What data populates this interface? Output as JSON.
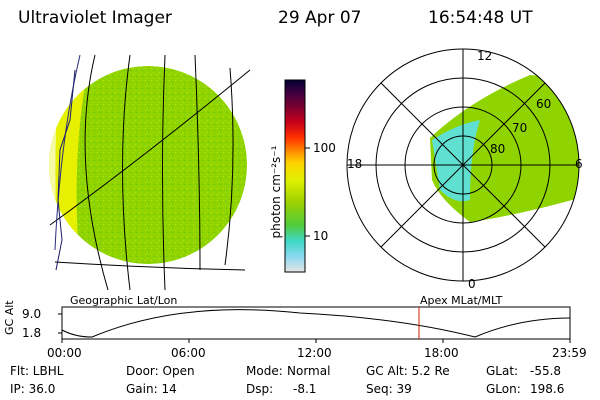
{
  "header": {
    "instrument": "Ultraviolet Imager",
    "date": "29 Apr 07",
    "time": "16:54:48 UT"
  },
  "colorbar": {
    "label": "photon cm⁻²s⁻¹",
    "ticks": [
      "100",
      "10"
    ]
  },
  "left_panel": {
    "caption": "Geographic Lat/Lon"
  },
  "right_panel": {
    "caption": "Apex MLat/MLT",
    "mlt_labels": {
      "top": "12",
      "left": "18",
      "right": "6",
      "bottom": "0"
    },
    "lat_labels": [
      "60",
      "70",
      "80"
    ]
  },
  "orbit_plot": {
    "ylabel": "GC Alt",
    "y_ticks": [
      "9.0",
      "1.8"
    ],
    "x_ticks": [
      "00:00",
      "06:00",
      "12:00",
      "18:00",
      "23:59"
    ],
    "current_time_hours": 16.91,
    "colors": {
      "curve": "#000000",
      "marker": "#cc2200"
    }
  },
  "status": {
    "flt": "Flt: LBHL",
    "door": "Door: Open",
    "mode_label": "Mode:",
    "mode_value": "Normal",
    "gc_alt": "GC Alt: 5.2 Re",
    "glat_label": "GLat:",
    "glat_value": "-55.8",
    "ip": "IP: 36.0",
    "gain": "Gain: 14",
    "dsp_label": "Dsp:",
    "dsp_value": "-8.1",
    "seq": "Seq: 39",
    "glon_label": "GLon:",
    "glon_value": "198.6"
  },
  "colors": {
    "image_green": "#8fd400",
    "image_yellow": "#e6f000",
    "image_cyan": "#5fe0d0",
    "colorbar_stops": [
      "#000033",
      "#3a0040",
      "#7a0030",
      "#c8001a",
      "#ff3000",
      "#ff8a00",
      "#ffd200",
      "#e0f000",
      "#9ad000",
      "#4fcc40",
      "#40d8c8",
      "#8ad8f0",
      "#e6e6e6"
    ]
  }
}
